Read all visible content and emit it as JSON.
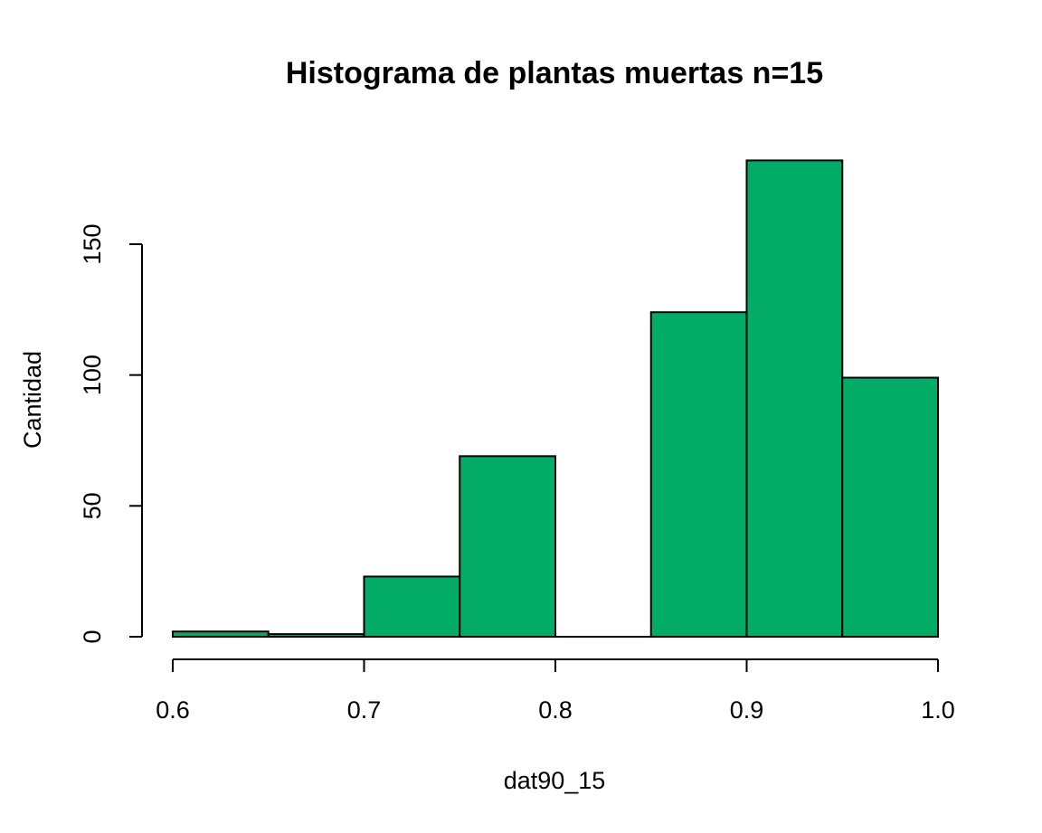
{
  "chart_data": {
    "type": "bar",
    "subtype": "histogram",
    "title": "Histograma de plantas muertas n=15",
    "xlabel": "dat90_15",
    "ylabel": "Cantidad",
    "bins": [
      {
        "start": 0.6,
        "end": 0.65,
        "count": 2
      },
      {
        "start": 0.65,
        "end": 0.7,
        "count": 1
      },
      {
        "start": 0.7,
        "end": 0.75,
        "count": 23
      },
      {
        "start": 0.75,
        "end": 0.8,
        "count": 69
      },
      {
        "start": 0.8,
        "end": 0.85,
        "count": 0
      },
      {
        "start": 0.85,
        "end": 0.9,
        "count": 124
      },
      {
        "start": 0.9,
        "end": 0.95,
        "count": 182
      },
      {
        "start": 0.95,
        "end": 1.0,
        "count": 99
      }
    ],
    "xlim": [
      0.6,
      1.0
    ],
    "ylim": [
      0,
      182
    ],
    "xticks": [
      "0.6",
      "0.7",
      "0.8",
      "0.9",
      "1.0"
    ],
    "yticks": [
      "0",
      "50",
      "100",
      "150"
    ],
    "bar_color": "#03AC66",
    "edge_color": "#000000",
    "grid": false,
    "legend": "none"
  }
}
